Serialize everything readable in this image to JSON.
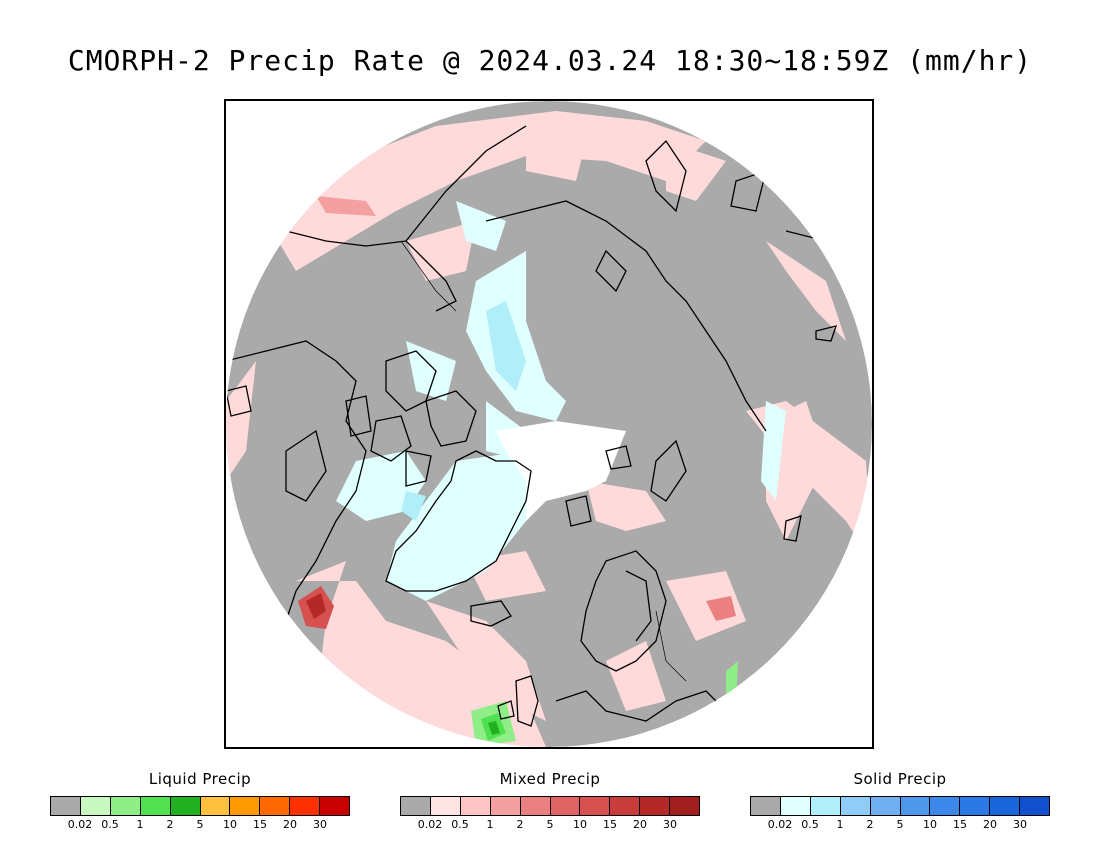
{
  "title": "CMORPH-2 Precip Rate @ 2024.03.24 18:30~18:59Z (mm/hr)",
  "map": {
    "projection": "polar-stereographic-north",
    "background_color": "#aaaaaa",
    "coastline_color": "#000000"
  },
  "legends": [
    {
      "id": "liquid",
      "title": "Liquid Precip",
      "colors": [
        "#aaaaaa",
        "#c8f8c0",
        "#90ee88",
        "#50e050",
        "#20b020",
        "#ffc040",
        "#ff9a00",
        "#ff6a00",
        "#ff3000",
        "#c80000"
      ],
      "ticks": [
        "0.02",
        "0.5",
        "1",
        "2",
        "5",
        "10",
        "15",
        "20",
        "30"
      ]
    },
    {
      "id": "mixed",
      "title": "Mixed Precip",
      "colors": [
        "#aaaaaa",
        "#ffe4e4",
        "#ffc4c4",
        "#f4a0a0",
        "#ea8080",
        "#e06464",
        "#d65050",
        "#c83c3c",
        "#b42828",
        "#a01e1e"
      ],
      "ticks": [
        "0.02",
        "0.5",
        "1",
        "2",
        "5",
        "10",
        "15",
        "20",
        "30"
      ]
    },
    {
      "id": "solid",
      "title": "Solid Precip",
      "colors": [
        "#aaaaaa",
        "#e0ffff",
        "#b0eefa",
        "#90ccf8",
        "#70b0f0",
        "#5098ec",
        "#3c88e8",
        "#2c78e4",
        "#1c66dc",
        "#1050cc"
      ],
      "ticks": [
        "0.02",
        "0.5",
        "1",
        "2",
        "5",
        "10",
        "15",
        "20",
        "30"
      ]
    }
  ]
}
